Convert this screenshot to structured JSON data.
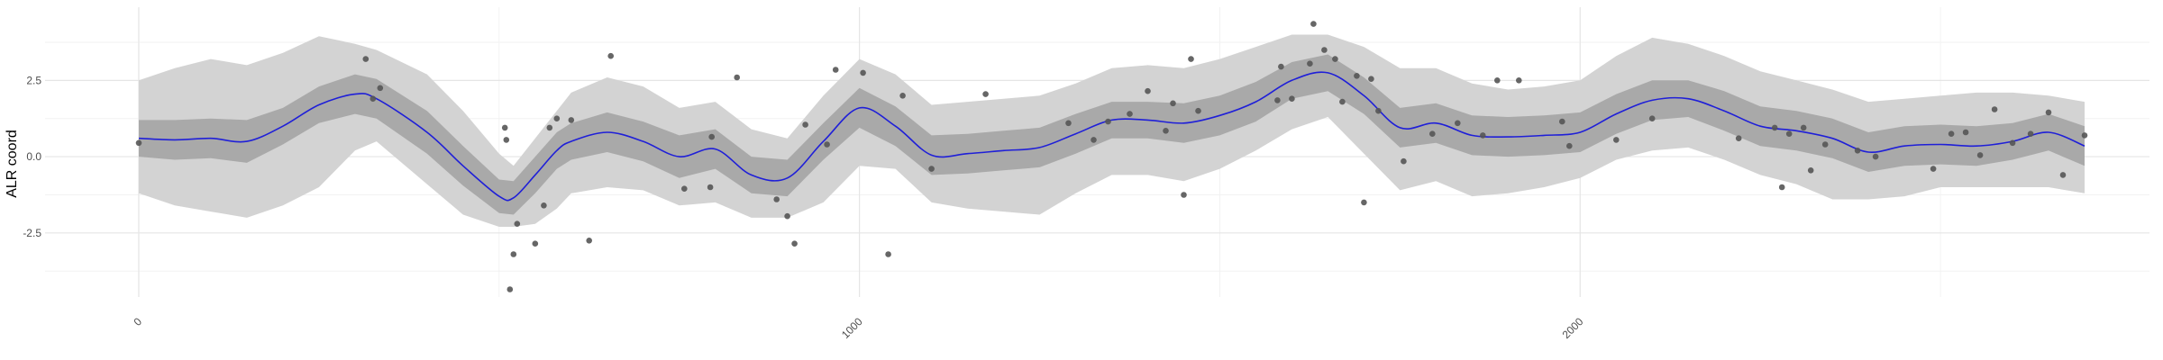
{
  "chart_data": {
    "type": "line",
    "title": "",
    "xlabel": "",
    "ylabel": "ALR coord",
    "xlim": [
      -130,
      2790
    ],
    "ylim": [
      -4.6,
      4.9
    ],
    "x_ticks": [
      0,
      1000,
      2000
    ],
    "x_tick_labels": [
      "0",
      "1000",
      "2000"
    ],
    "y_ticks": [
      -2.5,
      0.0,
      2.5
    ],
    "y_tick_labels": [
      "-2.5",
      "0.0",
      "2.5"
    ],
    "x_minor_ticks": [
      500,
      1500,
      2500
    ],
    "y_minor_ticks": [
      -3.75,
      -1.25,
      1.25,
      3.75
    ],
    "grid": true,
    "colors": {
      "line": "#1f1fd8",
      "inner_band": "#a9a9a9",
      "outer_band": "#d3d3d3",
      "points": "#555555",
      "grid_major": "#e5e5e5",
      "grid_minor": "#f2f2f2"
    },
    "series": [
      {
        "kind": "smooth_line",
        "x": [
          0,
          50,
          100,
          150,
          200,
          250,
          300,
          330,
          400,
          450,
          500,
          520,
          550,
          580,
          600,
          650,
          700,
          750,
          800,
          850,
          900,
          950,
          1000,
          1050,
          1100,
          1150,
          1200,
          1250,
          1300,
          1350,
          1400,
          1450,
          1500,
          1550,
          1600,
          1650,
          1700,
          1750,
          1800,
          1850,
          1900,
          1950,
          2000,
          2050,
          2100,
          2150,
          2200,
          2250,
          2300,
          2350,
          2400,
          2450,
          2500,
          2550,
          2600,
          2650,
          2700
        ],
        "y": [
          0.6,
          0.55,
          0.6,
          0.5,
          1.0,
          1.7,
          2.05,
          1.9,
          0.8,
          -0.3,
          -1.3,
          -1.35,
          -0.6,
          0.2,
          0.5,
          0.8,
          0.5,
          0.0,
          0.25,
          -0.6,
          -0.7,
          0.5,
          1.6,
          1.0,
          0.05,
          0.1,
          0.2,
          0.3,
          0.75,
          1.2,
          1.2,
          1.1,
          1.35,
          1.8,
          2.5,
          2.75,
          2.0,
          0.95,
          1.1,
          0.7,
          0.65,
          0.7,
          0.8,
          1.4,
          1.85,
          1.9,
          1.5,
          1.0,
          0.85,
          0.6,
          0.15,
          0.35,
          0.4,
          0.35,
          0.5,
          0.8,
          0.35
        ]
      },
      {
        "kind": "inner_band",
        "x": [
          0,
          50,
          100,
          150,
          200,
          250,
          300,
          330,
          400,
          450,
          500,
          520,
          550,
          580,
          600,
          650,
          700,
          750,
          800,
          850,
          900,
          950,
          1000,
          1050,
          1100,
          1150,
          1200,
          1250,
          1300,
          1350,
          1400,
          1450,
          1500,
          1550,
          1600,
          1650,
          1700,
          1750,
          1800,
          1850,
          1900,
          1950,
          2000,
          2050,
          2100,
          2150,
          2200,
          2250,
          2300,
          2350,
          2400,
          2450,
          2500,
          2550,
          2600,
          2650,
          2700
        ],
        "upper": [
          1.2,
          1.2,
          1.25,
          1.2,
          1.6,
          2.3,
          2.7,
          2.55,
          1.5,
          0.35,
          -0.75,
          -0.8,
          0.0,
          0.8,
          1.1,
          1.45,
          1.15,
          0.7,
          0.9,
          0.0,
          -0.1,
          1.1,
          2.25,
          1.65,
          0.7,
          0.75,
          0.85,
          0.95,
          1.4,
          1.8,
          1.8,
          1.75,
          2.0,
          2.45,
          3.1,
          3.35,
          2.6,
          1.6,
          1.75,
          1.35,
          1.3,
          1.35,
          1.45,
          2.05,
          2.5,
          2.5,
          2.15,
          1.65,
          1.5,
          1.25,
          0.8,
          1.0,
          1.05,
          1.0,
          1.1,
          1.4,
          1.0
        ],
        "lower": [
          0.0,
          -0.1,
          -0.05,
          -0.2,
          0.4,
          1.1,
          1.4,
          1.25,
          0.1,
          -0.95,
          -1.85,
          -1.9,
          -1.2,
          -0.4,
          -0.1,
          0.15,
          -0.15,
          -0.7,
          -0.4,
          -1.2,
          -1.3,
          -0.1,
          0.95,
          0.35,
          -0.6,
          -0.55,
          -0.45,
          -0.35,
          0.1,
          0.6,
          0.6,
          0.45,
          0.7,
          1.15,
          1.9,
          2.15,
          1.4,
          0.3,
          0.45,
          0.05,
          0.0,
          0.05,
          0.15,
          0.75,
          1.2,
          1.3,
          0.85,
          0.35,
          0.2,
          -0.05,
          -0.5,
          -0.3,
          -0.25,
          -0.3,
          -0.1,
          0.2,
          -0.3
        ]
      },
      {
        "kind": "outer_band",
        "x": [
          0,
          50,
          100,
          150,
          200,
          250,
          300,
          330,
          400,
          450,
          500,
          520,
          550,
          580,
          600,
          650,
          700,
          750,
          800,
          850,
          900,
          950,
          1000,
          1050,
          1100,
          1150,
          1200,
          1250,
          1300,
          1350,
          1400,
          1450,
          1500,
          1550,
          1600,
          1650,
          1700,
          1750,
          1800,
          1850,
          1900,
          1950,
          2000,
          2050,
          2100,
          2150,
          2200,
          2250,
          2300,
          2350,
          2400,
          2450,
          2500,
          2550,
          2600,
          2650,
          2700
        ],
        "upper": [
          2.5,
          2.9,
          3.2,
          3.0,
          3.4,
          3.95,
          3.7,
          3.5,
          2.7,
          1.5,
          0.1,
          -0.3,
          0.6,
          1.5,
          2.1,
          2.6,
          2.3,
          1.6,
          1.8,
          0.9,
          0.6,
          2.0,
          3.2,
          2.7,
          1.7,
          1.8,
          1.9,
          2.0,
          2.4,
          2.9,
          3.0,
          2.9,
          3.2,
          3.6,
          4.0,
          4.0,
          3.6,
          2.9,
          2.9,
          2.4,
          2.2,
          2.3,
          2.5,
          3.3,
          3.9,
          3.7,
          3.3,
          2.8,
          2.5,
          2.2,
          1.8,
          1.9,
          2.0,
          2.1,
          2.1,
          2.0,
          1.8
        ],
        "lower": [
          -1.2,
          -1.6,
          -1.8,
          -2.0,
          -1.6,
          -1.0,
          0.2,
          0.5,
          -0.9,
          -1.9,
          -2.3,
          -2.3,
          -2.2,
          -1.7,
          -1.2,
          -1.0,
          -1.1,
          -1.6,
          -1.5,
          -2.0,
          -2.0,
          -1.5,
          -0.3,
          -0.4,
          -1.5,
          -1.7,
          -1.8,
          -1.9,
          -1.2,
          -0.6,
          -0.6,
          -0.8,
          -0.4,
          0.2,
          0.9,
          1.3,
          0.1,
          -1.1,
          -0.8,
          -1.3,
          -1.2,
          -1.0,
          -0.7,
          -0.1,
          0.2,
          0.3,
          -0.1,
          -0.6,
          -0.9,
          -1.4,
          -1.4,
          -1.3,
          -1.0,
          -1.0,
          -1.0,
          -1.0,
          -1.2
        ]
      },
      {
        "kind": "points",
        "x": [
          0,
          315,
          325,
          335,
          508,
          510,
          515,
          520,
          525,
          550,
          562,
          570,
          580,
          600,
          625,
          655,
          757,
          793,
          795,
          830,
          885,
          900,
          910,
          925,
          955,
          967,
          1005,
          1040,
          1060,
          1100,
          1175,
          1290,
          1325,
          1345,
          1375,
          1400,
          1425,
          1435,
          1450,
          1460,
          1470,
          1580,
          1585,
          1600,
          1625,
          1630,
          1645,
          1660,
          1670,
          1690,
          1700,
          1710,
          1720,
          1755,
          1795,
          1830,
          1865,
          1885,
          1915,
          1975,
          1985,
          2050,
          2100,
          2220,
          2270,
          2280,
          2290,
          2310,
          2320,
          2340,
          2385,
          2410,
          2490,
          2515,
          2535,
          2555,
          2575,
          2600,
          2625,
          2650,
          2670,
          2700
        ],
        "y": [
          0.45,
          3.2,
          1.9,
          2.25,
          0.95,
          0.55,
          -4.35,
          -3.2,
          -2.2,
          -2.85,
          -1.6,
          0.95,
          1.25,
          1.2,
          -2.75,
          3.3,
          -1.05,
          -1.0,
          0.65,
          2.6,
          -1.4,
          -1.95,
          -2.85,
          1.05,
          0.4,
          2.85,
          2.75,
          -3.2,
          2.0,
          -0.4,
          2.05,
          1.1,
          0.55,
          1.15,
          1.4,
          2.15,
          0.85,
          1.75,
          -1.25,
          3.2,
          1.5,
          1.85,
          2.95,
          1.9,
          3.05,
          4.35,
          3.5,
          3.2,
          1.8,
          2.65,
          -1.5,
          2.55,
          1.5,
          -0.15,
          0.75,
          1.1,
          0.7,
          2.5,
          2.5,
          1.15,
          0.35,
          0.55,
          1.25,
          0.6,
          0.95,
          -1.0,
          0.75,
          0.95,
          -0.45,
          0.4,
          0.2,
          0.0,
          -0.4,
          0.75,
          0.8,
          0.05,
          1.55,
          0.45,
          0.75,
          1.45,
          -0.6,
          0.7
        ]
      }
    ]
  }
}
